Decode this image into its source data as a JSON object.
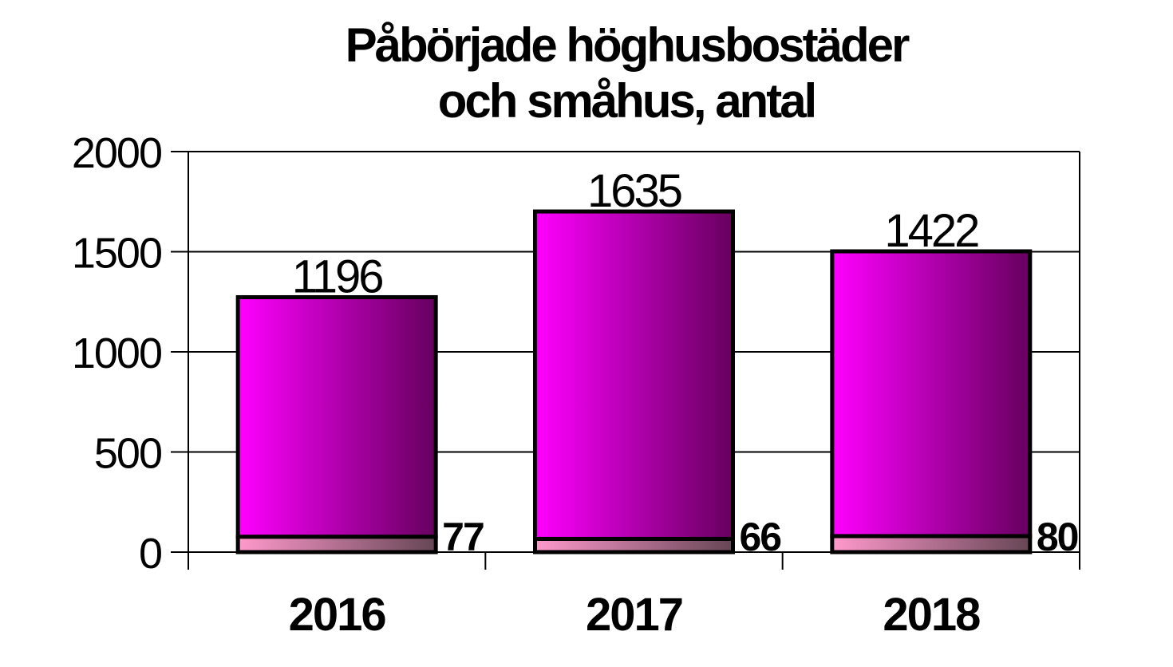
{
  "chart_data": {
    "type": "bar",
    "title_lines": [
      "Påbörjade höghusbostäder",
      "och småhus, antal"
    ],
    "categories": [
      "2016",
      "2017",
      "2018"
    ],
    "series": [
      {
        "values": [
          1196,
          1635,
          1422
        ],
        "color_light": "#ff00ff",
        "color_dark": "#66005e"
      },
      {
        "values": [
          77,
          66,
          80
        ],
        "color_light": "#ff99cc",
        "color_dark": "#664655"
      }
    ],
    "y_ticks": [
      "0",
      "500",
      "1000",
      "1500",
      "2000"
    ],
    "ylim": [
      0,
      2000
    ],
    "grid": true,
    "legend": "none"
  }
}
